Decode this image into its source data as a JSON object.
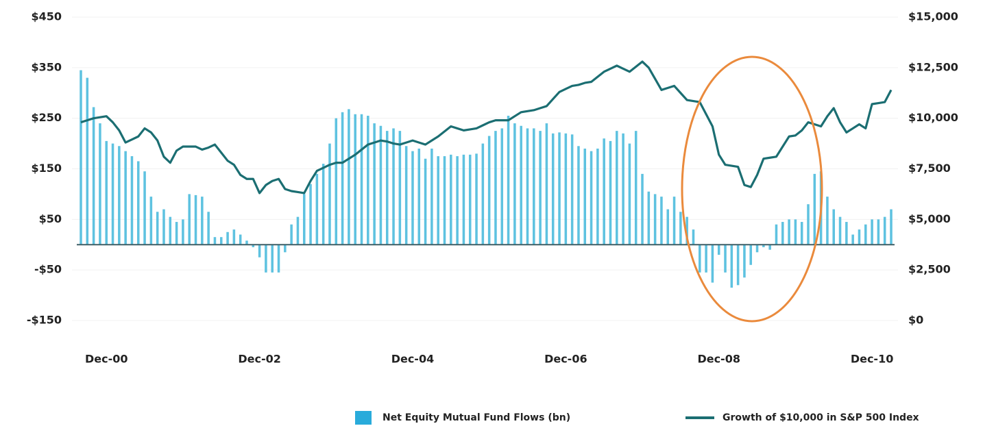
{
  "chart_data": {
    "type": "combo",
    "categories": [
      null,
      null,
      null,
      null,
      "Dec-00",
      null,
      null,
      null,
      null,
      null,
      null,
      null,
      null,
      null,
      null,
      null,
      null,
      null,
      null,
      null,
      null,
      null,
      null,
      null,
      null,
      null,
      null,
      null,
      "Dec-02",
      null,
      null,
      null,
      null,
      null,
      null,
      null,
      null,
      null,
      null,
      null,
      null,
      null,
      null,
      null,
      null,
      null,
      null,
      null,
      null,
      null,
      null,
      null,
      "Dec-04",
      null,
      null,
      null,
      null,
      null,
      null,
      null,
      null,
      null,
      null,
      null,
      null,
      null,
      null,
      null,
      null,
      null,
      null,
      null,
      null,
      null,
      null,
      null,
      "Dec-06",
      null,
      null,
      null,
      null,
      null,
      null,
      null,
      null,
      null,
      null,
      null,
      null,
      null,
      null,
      null,
      null,
      null,
      null,
      null,
      null,
      null,
      null,
      null,
      "Dec-08",
      null,
      null,
      null,
      null,
      null,
      null,
      null,
      null,
      null,
      null,
      null,
      null,
      null,
      null,
      null,
      null,
      null,
      null,
      null,
      null,
      null,
      null,
      null,
      "Dec-10",
      null,
      null,
      null
    ],
    "series": [
      {
        "name": "Net Equity Mutual Fund Flows (bn)",
        "type": "bar",
        "color": "#5ec2e0",
        "values": [
          345,
          330,
          272,
          240,
          205,
          200,
          195,
          185,
          175,
          165,
          145,
          95,
          65,
          70,
          55,
          45,
          50,
          100,
          98,
          95,
          65,
          15,
          15,
          25,
          30,
          20,
          8,
          -5,
          -25,
          -55,
          -55,
          -55,
          -15,
          40,
          55,
          100,
          120,
          140,
          160,
          200,
          250,
          262,
          268,
          258,
          258,
          255,
          240,
          235,
          225,
          230,
          225,
          195,
          185,
          190,
          170,
          190,
          175,
          175,
          178,
          175,
          178,
          178,
          180,
          200,
          215,
          225,
          230,
          255,
          240,
          235,
          230,
          230,
          225,
          240,
          220,
          222,
          220,
          218,
          195,
          190,
          185,
          190,
          210,
          205,
          225,
          220,
          200,
          225,
          140,
          105,
          100,
          95,
          70,
          95,
          65,
          55,
          30,
          -55,
          -55,
          -75,
          -20,
          -55,
          -85,
          -80,
          -65,
          -40,
          -15,
          -5,
          -10,
          40,
          45,
          50,
          50,
          45,
          80,
          140,
          145,
          95,
          70,
          55,
          45,
          20,
          30,
          40,
          50,
          50,
          55,
          70
        ]
      },
      {
        "name": "Growth of $10,000 in S&P 500 Index",
        "type": "line",
        "color": "#1b6e72",
        "axis": "y2",
        "values": [
          9800,
          9900,
          10000,
          10050,
          10100,
          9800,
          9400,
          8800,
          8950,
          9100,
          9500,
          9300,
          8900,
          8100,
          7800,
          8400,
          8600,
          8600,
          8600,
          8450,
          8550,
          8700,
          8300,
          7900,
          7700,
          7200,
          7000,
          7000,
          6300,
          6700,
          6900,
          7000,
          6500,
          6400,
          6350,
          6300,
          6900,
          7400,
          7550,
          7700,
          7800,
          7800,
          8000,
          8200,
          8450,
          8700,
          8800,
          8900,
          8850,
          8750,
          8700,
          8800,
          8900,
          8800,
          8700,
          8900,
          9100,
          9350,
          9600,
          9500,
          9400,
          9450,
          9500,
          9650,
          9800,
          9900,
          9900,
          9900,
          10100,
          10300,
          10350,
          10400,
          10500,
          10600,
          10950,
          11300,
          11450,
          11600,
          11650,
          11750,
          11800,
          12050,
          12300,
          12450,
          12600,
          12450,
          12300,
          12550,
          12800,
          12500,
          11950,
          11400,
          11500,
          11600,
          11250,
          10900,
          10850,
          10800,
          10200,
          9600,
          8200,
          7700,
          7650,
          7600,
          6700,
          6600,
          7200,
          8000,
          8050,
          8100,
          8600,
          9100,
          9150,
          9400,
          9800,
          9700,
          9600,
          10100,
          10500,
          9800,
          9300,
          9500,
          9700,
          9500,
          10700,
          10750,
          10800,
          11400
        ]
      }
    ],
    "ylim": [
      -150,
      450
    ],
    "yticks": [
      {
        "value": 450,
        "label": "$450"
      },
      {
        "value": 350,
        "label": "$350"
      },
      {
        "value": 250,
        "label": "$250"
      },
      {
        "value": 150,
        "label": "$150"
      },
      {
        "value": 50,
        "label": "$50"
      },
      {
        "value": -50,
        "label": "-$50"
      },
      {
        "value": -150,
        "label": "-$150"
      }
    ],
    "y2lim": [
      0,
      15000
    ],
    "y2ticks": [
      {
        "value": 15000,
        "label": "$15,000"
      },
      {
        "value": 12500,
        "label": "$12,500"
      },
      {
        "value": 10000,
        "label": "$10,000"
      },
      {
        "value": 7500,
        "label": "$7,500"
      },
      {
        "value": 5000,
        "label": "$5,000"
      },
      {
        "value": 2500,
        "label": "$2,500"
      },
      {
        "value": 0,
        "label": "$0"
      }
    ],
    "grid": true
  }
}
